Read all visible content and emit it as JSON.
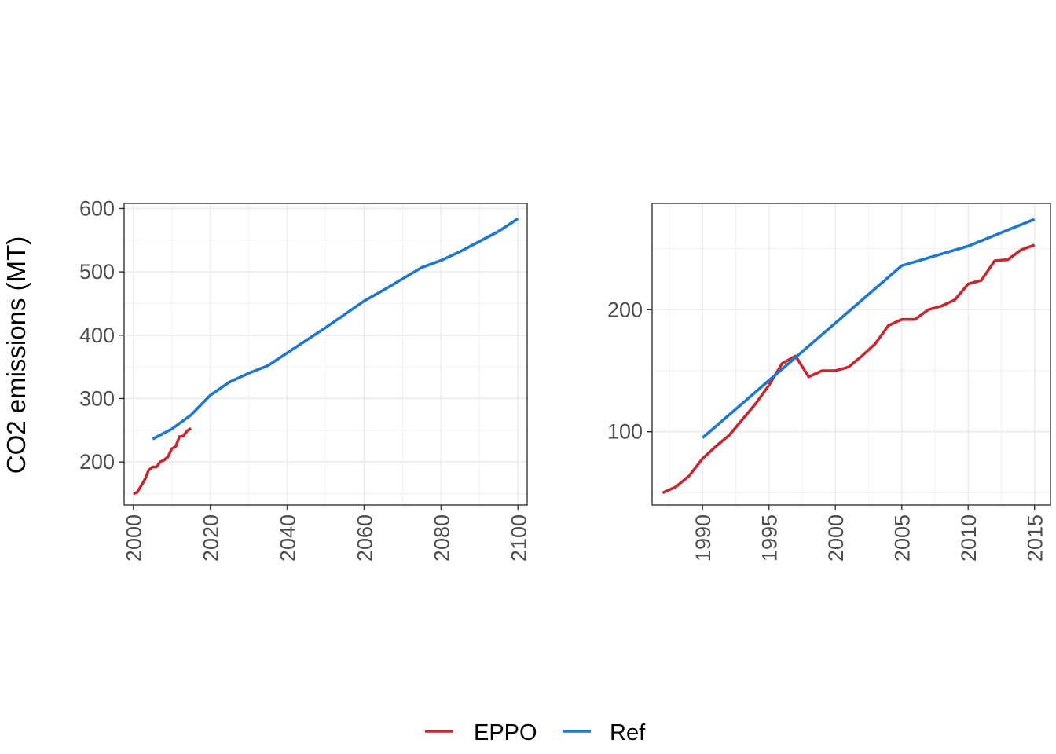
{
  "ylabel": "CO2 emissions (MT)",
  "legend": {
    "position": "bottom",
    "items": [
      {
        "label": "EPPO",
        "color": "#c8282d"
      },
      {
        "label": "Ref",
        "color": "#1f77d0"
      }
    ]
  },
  "chart_data": [
    {
      "type": "line",
      "title": "",
      "xlabel": "",
      "ylabel": "CO2 emissions (MT)",
      "xlim": [
        1997.6,
        2102.4
      ],
      "ylim": [
        132,
        608
      ],
      "x_ticks": [
        2000,
        2020,
        2040,
        2060,
        2080,
        2100
      ],
      "y_ticks": [
        200,
        300,
        400,
        500,
        600
      ],
      "grid": true,
      "series": [
        {
          "name": "EPPO",
          "color": "#c8282d",
          "x": [
            2000,
            2001,
            2002,
            2003,
            2004,
            2005,
            2006,
            2007,
            2008,
            2009,
            2010,
            2011,
            2012,
            2013,
            2014,
            2015
          ],
          "y": [
            150,
            152,
            162,
            172,
            187,
            192,
            192,
            200,
            203,
            208,
            221,
            224,
            240,
            241,
            249,
            253
          ]
        },
        {
          "name": "Ref",
          "color": "#1f77d0",
          "x": [
            2005,
            2010,
            2015,
            2020,
            2025,
            2030,
            2035,
            2040,
            2045,
            2050,
            2055,
            2060,
            2065,
            2070,
            2075,
            2080,
            2085,
            2090,
            2095,
            2100
          ],
          "y": [
            236,
            252,
            274,
            305,
            326,
            340,
            352,
            372,
            392,
            412,
            433,
            454,
            471,
            489,
            507,
            518,
            532,
            548,
            564,
            584
          ]
        }
      ]
    },
    {
      "type": "line",
      "title": "",
      "xlabel": "",
      "ylabel": "",
      "xlim": [
        1986.2,
        2016.2
      ],
      "ylim": [
        40,
        287
      ],
      "x_ticks": [
        1990,
        1995,
        2000,
        2005,
        2010,
        2015
      ],
      "y_ticks": [
        100,
        200
      ],
      "grid": true,
      "series": [
        {
          "name": "EPPO",
          "color": "#c8282d",
          "x": [
            1987,
            1988,
            1989,
            1990,
            1991,
            1992,
            1993,
            1994,
            1995,
            1996,
            1997,
            1998,
            1999,
            2000,
            2001,
            2002,
            2003,
            2004,
            2005,
            2006,
            2007,
            2008,
            2009,
            2010,
            2011,
            2012,
            2013,
            2014,
            2015
          ],
          "y": [
            50,
            55,
            64,
            78,
            88,
            97,
            110,
            123,
            138,
            156,
            162,
            145,
            150,
            150,
            153,
            162,
            172,
            187,
            192,
            192,
            200,
            203,
            208,
            221,
            224,
            240,
            241,
            249,
            253
          ]
        },
        {
          "name": "Ref",
          "color": "#1f77d0",
          "x": [
            1990,
            2005,
            2010,
            2015
          ],
          "y": [
            95,
            236,
            252,
            274
          ]
        }
      ]
    }
  ]
}
